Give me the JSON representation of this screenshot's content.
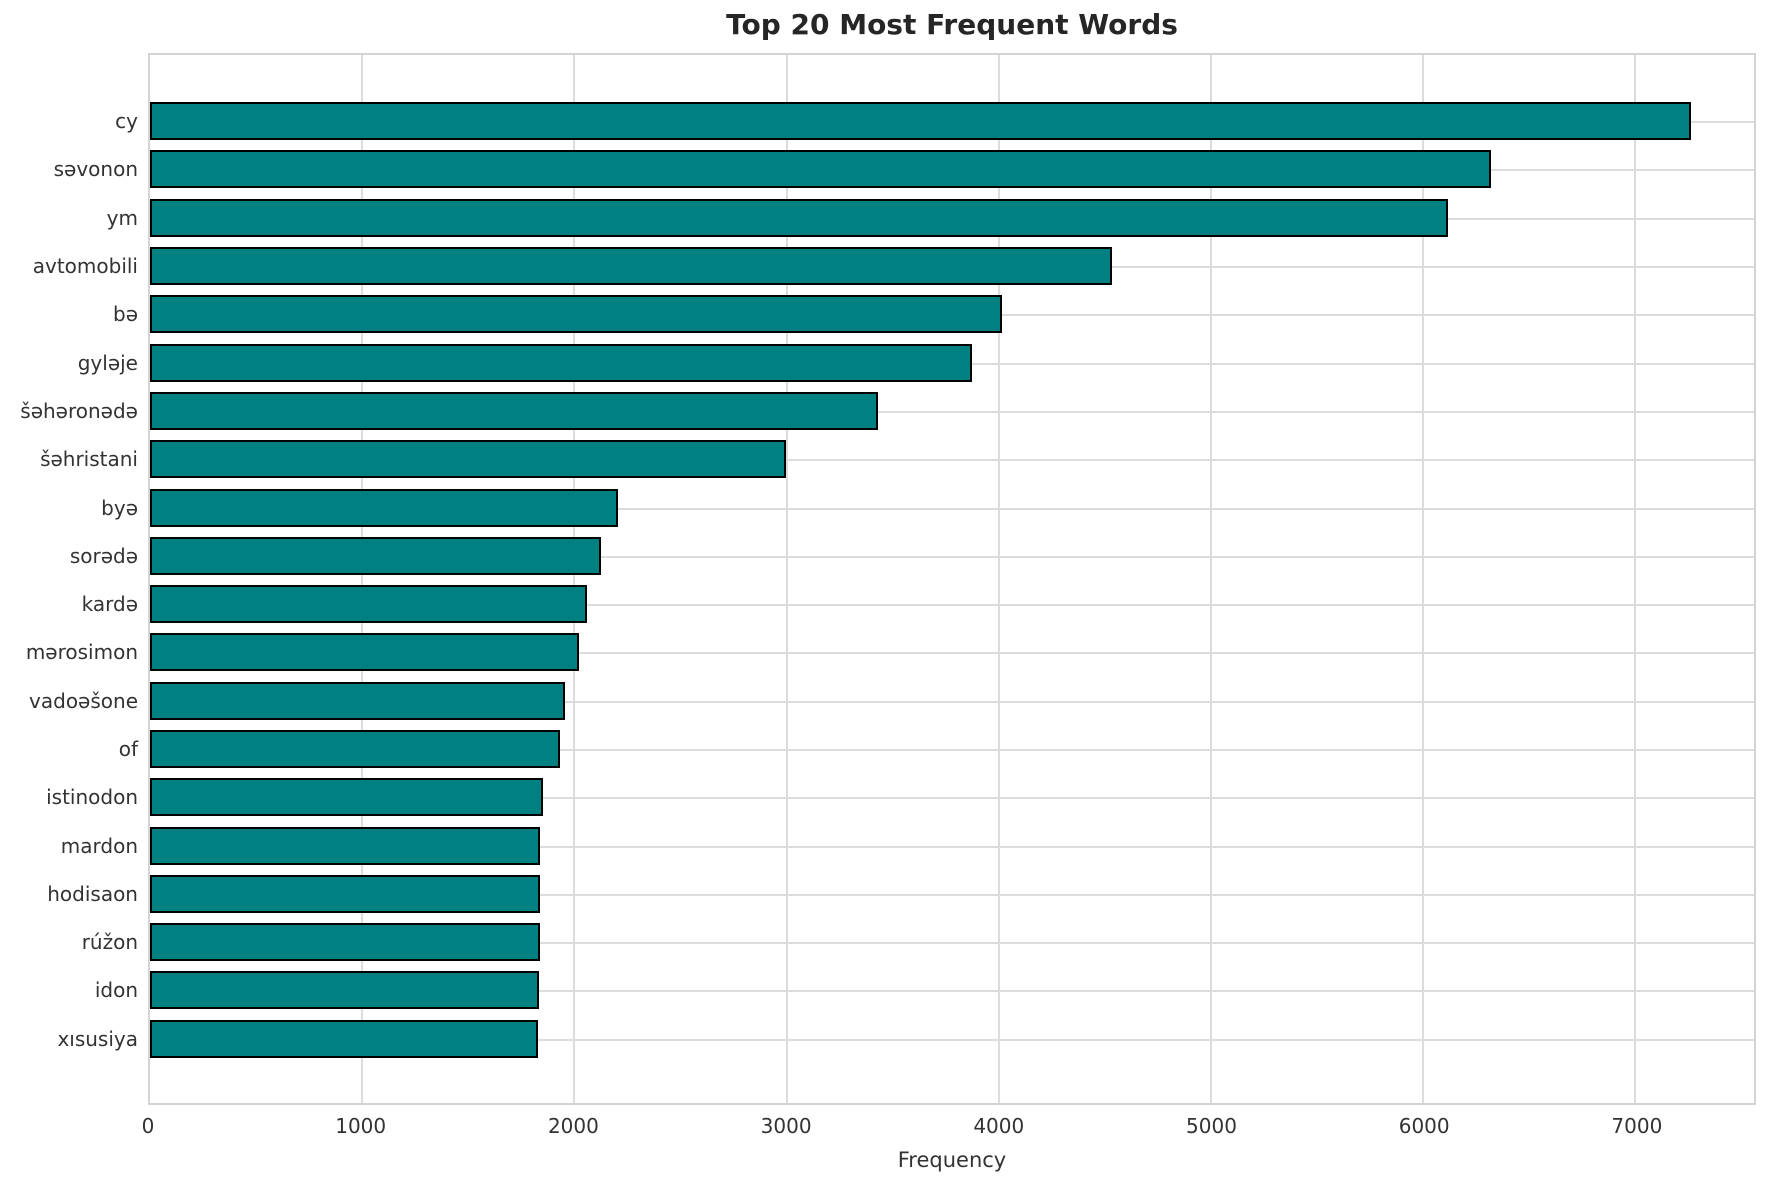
{
  "title": "Top 20 Most Frequent Words",
  "colors": {
    "bar_fill": "#008080",
    "bar_edge": "#000000",
    "grid": "#dcdcdc",
    "frame": "#d4d4d4",
    "title_text": "#262626",
    "tick_text": "#333333",
    "background": "#ffffff"
  },
  "chart_data": {
    "type": "bar",
    "orientation": "horizontal",
    "title": "Top 20 Most Frequent Words",
    "xlabel": "Frequency",
    "ylabel": "",
    "categories": [
      "cy",
      "səvonon",
      "ym",
      "avtomobili",
      "bə",
      "gyləje",
      "šəhəronədə",
      "šəhristani",
      "byə",
      "sorədə",
      "kardə",
      "mərosimon",
      "vadoəšone",
      "of",
      "istinodon",
      "mardon",
      "hodisaon",
      "rúžon",
      "idon",
      "xısusiya"
    ],
    "values": [
      7262,
      6322,
      6116,
      4536,
      4014,
      3873,
      3431,
      2999,
      2204,
      2124,
      2059,
      2021,
      1957,
      1932,
      1853,
      1840,
      1838,
      1836,
      1833,
      1830
    ],
    "xticks": [
      0,
      1000,
      2000,
      3000,
      4000,
      5000,
      6000,
      7000
    ],
    "xlim": [
      0,
      7560
    ],
    "grid": true,
    "legend": false,
    "bar_color": "#008080",
    "bar_edge_color": "#000000"
  }
}
